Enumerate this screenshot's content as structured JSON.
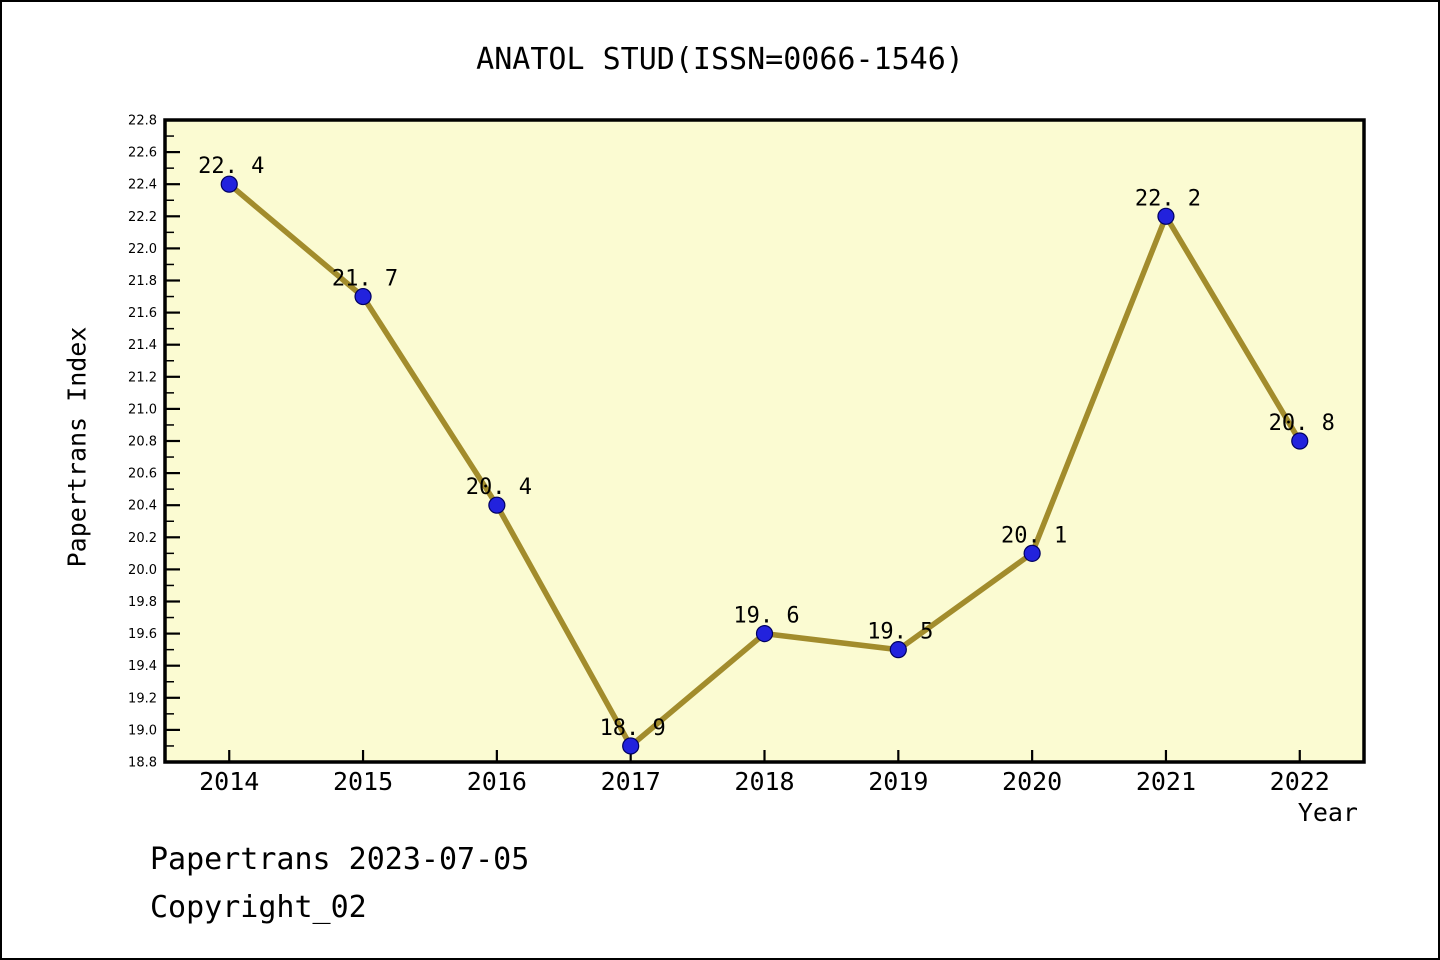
{
  "header": {
    "title": "ANATOL STUD(ISSN=0066-1546)"
  },
  "footer": {
    "line1": "Papertrans 2023-07-05",
    "line2": "Copyright_02"
  },
  "chart_data": {
    "type": "line",
    "title": "ANATOL STUD(ISSN=0066-1546)",
    "xlabel": "Year",
    "ylabel": "Papertrans Index",
    "categories": [
      "2014",
      "2015",
      "2016",
      "2017",
      "2018",
      "2019",
      "2020",
      "2021",
      "2022"
    ],
    "series": [
      {
        "name": "Papertrans Index",
        "values": [
          22.4,
          21.7,
          20.4,
          18.9,
          19.6,
          19.5,
          20.1,
          22.2,
          20.8
        ]
      }
    ],
    "point_labels": [
      "22. 4",
      "21. 7",
      "20. 4",
      "18. 9",
      "19. 6",
      "19. 5",
      "20. 1",
      "22. 2",
      "20. 8"
    ],
    "ylim": [
      18.8,
      22.8
    ],
    "y_major_step": 0.2,
    "y_minor_step": 0.1,
    "y_tick_labels": [
      "18.8",
      "19.0",
      "19.2",
      "19.4",
      "19.6",
      "19.8",
      "20.0",
      "20.2",
      "20.4",
      "20.6",
      "20.8",
      "21.0",
      "21.2",
      "21.4",
      "21.6",
      "21.8",
      "22.0",
      "22.2",
      "22.4",
      "22.6",
      "22.8"
    ],
    "grid": false,
    "legend": null,
    "colors": {
      "line": "#A28C2C",
      "marker_fill": "#2222DD",
      "marker_edge": "#000060",
      "plot_background": "#FBFBD2",
      "axis": "#000000",
      "text": "#000000",
      "page_background": "#FFFFFF"
    }
  }
}
